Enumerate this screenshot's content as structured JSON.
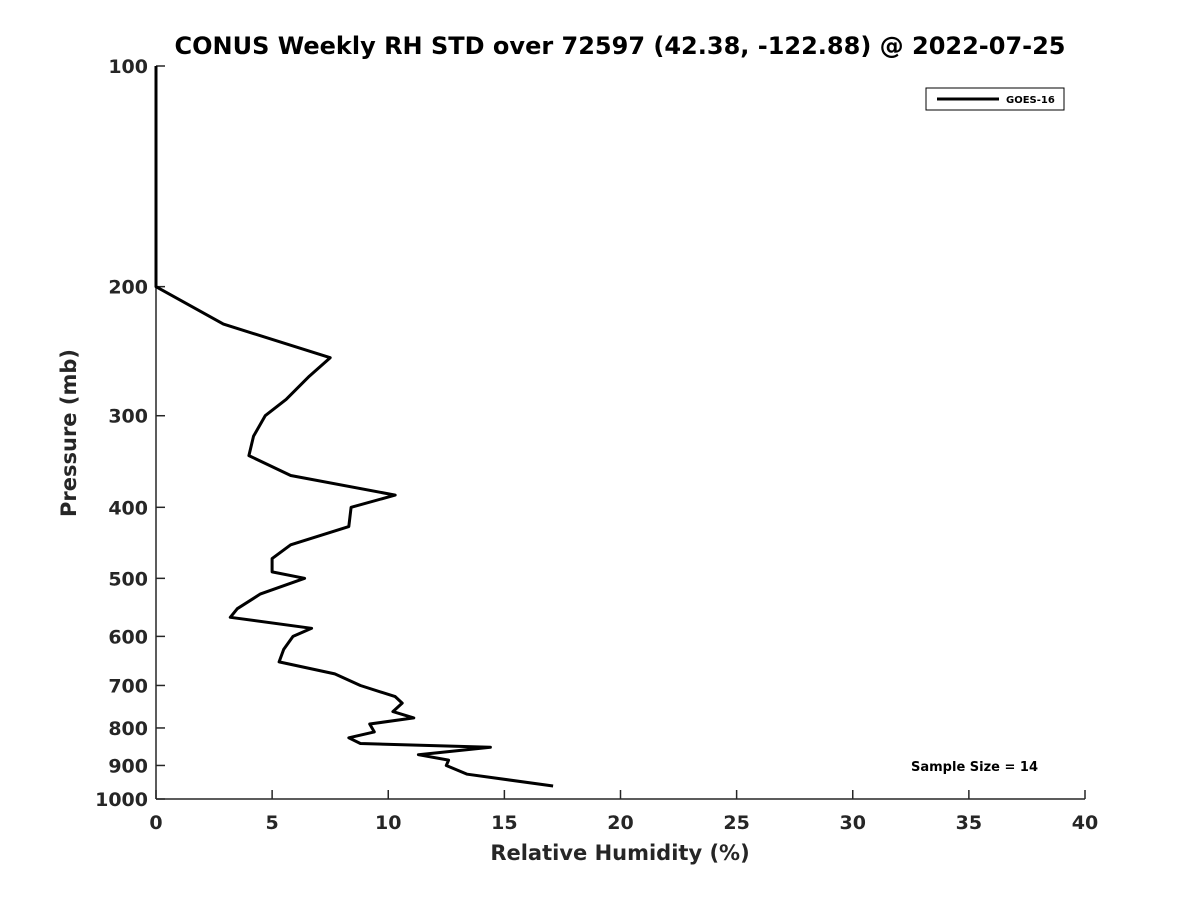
{
  "chart_data": {
    "type": "line",
    "title": "CONUS Weekly RH STD over 72597 (42.38, -122.88) @ 2022-07-25",
    "xlabel": "Relative Humidity (%)",
    "ylabel": "Pressure (mb)",
    "xlim": [
      0,
      40
    ],
    "ylim": [
      100,
      1000
    ],
    "yscale": "log",
    "y_reversed": true,
    "x_ticks": [
      0,
      5,
      10,
      15,
      20,
      25,
      30,
      35,
      40
    ],
    "y_ticks": [
      100,
      200,
      300,
      400,
      500,
      600,
      700,
      800,
      900,
      1000
    ],
    "grid": false,
    "legend_position": "top-right",
    "annotation": "Sample Size = 14",
    "series": [
      {
        "name": "GOES-16",
        "color": "#000000",
        "points": [
          [
            0.0,
            100
          ],
          [
            0.0,
            125
          ],
          [
            0.0,
            150
          ],
          [
            0.0,
            175
          ],
          [
            0.0,
            200
          ],
          [
            2.9,
            225
          ],
          [
            7.5,
            250
          ],
          [
            6.6,
            265
          ],
          [
            5.6,
            285
          ],
          [
            4.7,
            300
          ],
          [
            4.2,
            320
          ],
          [
            4.0,
            340
          ],
          [
            5.8,
            362
          ],
          [
            10.3,
            385
          ],
          [
            8.4,
            400
          ],
          [
            8.3,
            425
          ],
          [
            5.8,
            450
          ],
          [
            5.0,
            470
          ],
          [
            5.0,
            490
          ],
          [
            6.4,
            500
          ],
          [
            4.5,
            525
          ],
          [
            3.5,
            550
          ],
          [
            3.2,
            565
          ],
          [
            6.7,
            585
          ],
          [
            5.9,
            600
          ],
          [
            5.5,
            625
          ],
          [
            5.3,
            650
          ],
          [
            7.7,
            675
          ],
          [
            8.8,
            700
          ],
          [
            10.3,
            725
          ],
          [
            10.6,
            740
          ],
          [
            10.2,
            760
          ],
          [
            11.1,
            775
          ],
          [
            9.2,
            790
          ],
          [
            9.4,
            810
          ],
          [
            8.3,
            825
          ],
          [
            8.8,
            840
          ],
          [
            14.4,
            850
          ],
          [
            11.3,
            870
          ],
          [
            12.6,
            885
          ],
          [
            12.5,
            900
          ],
          [
            13.4,
            925
          ],
          [
            17.1,
            960
          ]
        ]
      }
    ]
  }
}
